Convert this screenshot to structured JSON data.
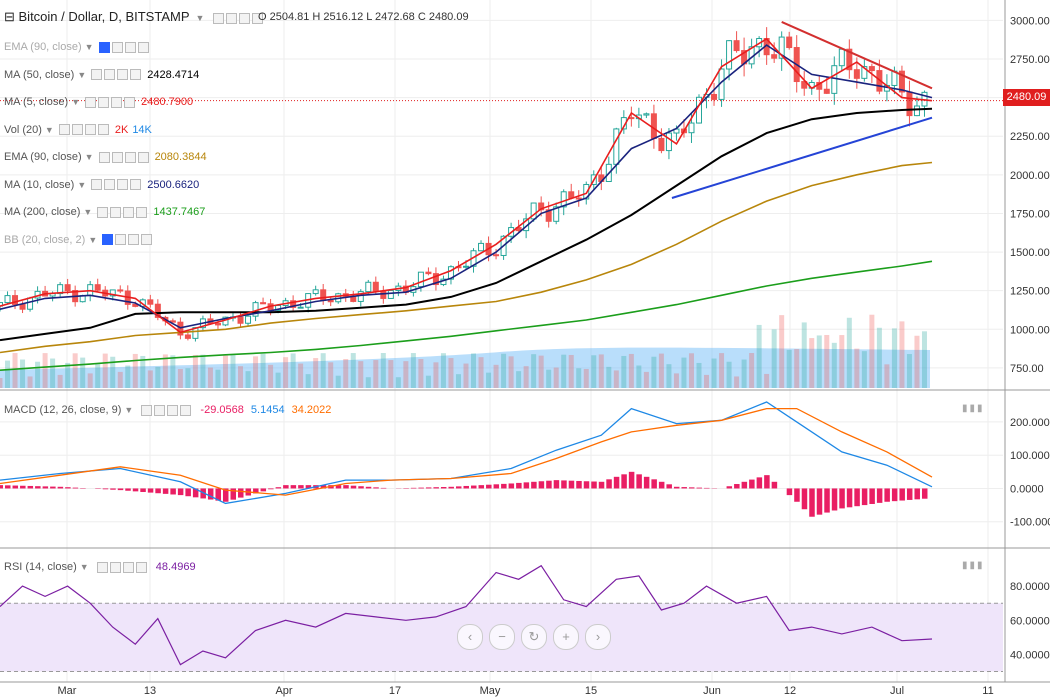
{
  "header": {
    "symbol": "Bitcoin / Dollar, D, BITSTAMP",
    "ohlc": "O 2504.81  H 2516.12  L 2472.68  C 2480.09",
    "last_price_tag": "2480.09"
  },
  "legend": [
    {
      "key": "ema90a",
      "label": "EMA (90, close)",
      "value": "",
      "color": "#9c27b0",
      "muted": true
    },
    {
      "key": "ma50",
      "label": "MA (50, close)",
      "value": "2428.4714",
      "color": "#000000",
      "muted": false
    },
    {
      "key": "ma5",
      "label": "MA (5, close)",
      "value": "2480.7900",
      "color": "#e91e1e",
      "muted": false
    },
    {
      "key": "vol",
      "label": "Vol (20)",
      "value": "2K",
      "value2": "14K",
      "color": "#e91e1e",
      "color2": "#1e88e5",
      "muted": false
    },
    {
      "key": "ema90",
      "label": "EMA (90, close)",
      "value": "2080.3844",
      "color": "#b8860b",
      "muted": false
    },
    {
      "key": "ma10",
      "label": "MA (10, close)",
      "value": "2500.6620",
      "color": "#1a237e",
      "muted": false
    },
    {
      "key": "ma200",
      "label": "MA (200, close)",
      "value": "1437.7467",
      "color": "#1b9e1b",
      "muted": false
    },
    {
      "key": "bb",
      "label": "BB (20, close, 2)",
      "value": "",
      "color": "#2962ff",
      "muted": true
    }
  ],
  "macd_legend": {
    "label": "MACD (12, 26, close, 9)",
    "hist": "-29.0568",
    "macd": "5.1454",
    "signal": "34.2022",
    "hist_color": "#e91e63",
    "macd_color": "#1e88e5",
    "signal_color": "#ff6d00"
  },
  "rsi_legend": {
    "label": "RSI (14, close)",
    "value": "48.4969",
    "color": "#7b1fa2"
  },
  "colors": {
    "up": "#26a69a",
    "down": "#ef5350",
    "grid": "#eeeeee",
    "rsi_band": "#efe5fa"
  },
  "nav_icons": [
    "chevron-left-icon",
    "minus-icon",
    "reset-icon",
    "plus-icon",
    "chevron-right-icon"
  ],
  "chart_data": {
    "type": "line",
    "title": "Bitcoin / Dollar, D, BITSTAMP",
    "price_axis": {
      "ylim": [
        620,
        3080
      ],
      "ticks": [
        750,
        1000,
        1250,
        1500,
        1750,
        2000,
        2250,
        2500,
        2750,
        3000
      ],
      "tick_labels": [
        "750.00",
        "1000.00",
        "1250.00",
        "1500.00",
        "1750.00",
        "2000.00",
        "2250.00",
        "2500.00",
        "2750.00",
        "3000.00"
      ]
    },
    "x_tick_labels": [
      "Mar",
      "13",
      "Apr",
      "17",
      "May",
      "15",
      "Jun",
      "12",
      "Jul",
      "11"
    ],
    "series": [
      {
        "name": "MA (200, close)",
        "values": [
          [
            0,
            735
          ],
          [
            30,
            755
          ],
          [
            60,
            775
          ],
          [
            90,
            798
          ],
          [
            120,
            818
          ],
          [
            150,
            835
          ],
          [
            180,
            850
          ],
          [
            210,
            870
          ],
          [
            240,
            895
          ],
          [
            270,
            925
          ],
          [
            300,
            955
          ],
          [
            330,
            990
          ],
          [
            360,
            1025
          ],
          [
            390,
            1060
          ],
          [
            420,
            1110
          ],
          [
            450,
            1160
          ],
          [
            480,
            1220
          ],
          [
            510,
            1280
          ],
          [
            540,
            1330
          ],
          [
            570,
            1370
          ],
          [
            600,
            1410
          ],
          [
            620,
            1440
          ]
        ]
      },
      {
        "name": "EMA (90, close)",
        "values": [
          [
            0,
            850
          ],
          [
            30,
            890
          ],
          [
            60,
            920
          ],
          [
            90,
            960
          ],
          [
            120,
            980
          ],
          [
            150,
            1000
          ],
          [
            180,
            1040
          ],
          [
            210,
            1070
          ],
          [
            240,
            1095
          ],
          [
            270,
            1120
          ],
          [
            300,
            1150
          ],
          [
            330,
            1180
          ],
          [
            360,
            1240
          ],
          [
            390,
            1320
          ],
          [
            420,
            1420
          ],
          [
            450,
            1550
          ],
          [
            480,
            1700
          ],
          [
            510,
            1830
          ],
          [
            540,
            1930
          ],
          [
            570,
            2000
          ],
          [
            600,
            2060
          ],
          [
            620,
            2080
          ]
        ]
      },
      {
        "name": "MA (50, close)",
        "values": [
          [
            0,
            930
          ],
          [
            30,
            970
          ],
          [
            60,
            1010
          ],
          [
            90,
            1100
          ],
          [
            120,
            1110
          ],
          [
            150,
            1110
          ],
          [
            180,
            1110
          ],
          [
            210,
            1120
          ],
          [
            240,
            1140
          ],
          [
            270,
            1160
          ],
          [
            300,
            1210
          ],
          [
            330,
            1300
          ],
          [
            360,
            1440
          ],
          [
            390,
            1580
          ],
          [
            420,
            1740
          ],
          [
            450,
            1930
          ],
          [
            480,
            2120
          ],
          [
            510,
            2270
          ],
          [
            540,
            2360
          ],
          [
            570,
            2400
          ],
          [
            600,
            2420
          ],
          [
            620,
            2428
          ]
        ]
      },
      {
        "name": "MA (10, close)",
        "values": [
          [
            0,
            1130
          ],
          [
            30,
            1200
          ],
          [
            60,
            1220
          ],
          [
            90,
            1170
          ],
          [
            120,
            1010
          ],
          [
            150,
            1070
          ],
          [
            180,
            1120
          ],
          [
            210,
            1180
          ],
          [
            240,
            1220
          ],
          [
            270,
            1240
          ],
          [
            300,
            1330
          ],
          [
            330,
            1500
          ],
          [
            360,
            1750
          ],
          [
            390,
            1850
          ],
          [
            420,
            2170
          ],
          [
            450,
            2300
          ],
          [
            480,
            2600
          ],
          [
            510,
            2840
          ],
          [
            540,
            2650
          ],
          [
            570,
            2600
          ],
          [
            600,
            2550
          ],
          [
            620,
            2500
          ]
        ]
      },
      {
        "name": "MA (5, close)",
        "values": [
          [
            0,
            1150
          ],
          [
            30,
            1230
          ],
          [
            60,
            1250
          ],
          [
            90,
            1200
          ],
          [
            120,
            980
          ],
          [
            150,
            1060
          ],
          [
            180,
            1150
          ],
          [
            210,
            1200
          ],
          [
            240,
            1230
          ],
          [
            270,
            1270
          ],
          [
            300,
            1380
          ],
          [
            330,
            1550
          ],
          [
            360,
            1780
          ],
          [
            390,
            1880
          ],
          [
            420,
            2400
          ],
          [
            450,
            2200
          ],
          [
            480,
            2700
          ],
          [
            510,
            2880
          ],
          [
            540,
            2560
          ],
          [
            570,
            2730
          ],
          [
            600,
            2500
          ],
          [
            620,
            2480
          ]
        ]
      }
    ],
    "trendlines": [
      {
        "color": "#d32f2f",
        "from": [
          520,
          2990
        ],
        "to": [
          620,
          2560
        ]
      },
      {
        "color": "#2544d6",
        "from": [
          447,
          1850
        ],
        "to": [
          620,
          2370
        ]
      }
    ],
    "macd": {
      "ylim": [
        -170,
        290
      ],
      "ticks": [
        -100,
        0,
        100,
        200
      ],
      "tick_labels": [
        "-100.0000",
        "0.0000",
        "100.0000",
        "200.0000"
      ],
      "macd": [
        [
          0,
          25
        ],
        [
          40,
          45
        ],
        [
          80,
          60
        ],
        [
          120,
          20
        ],
        [
          150,
          -45
        ],
        [
          190,
          -15
        ],
        [
          230,
          25
        ],
        [
          260,
          25
        ],
        [
          300,
          30
        ],
        [
          340,
          60
        ],
        [
          370,
          115
        ],
        [
          400,
          160
        ],
        [
          420,
          240
        ],
        [
          450,
          195
        ],
        [
          480,
          205
        ],
        [
          510,
          260
        ],
        [
          530,
          200
        ],
        [
          560,
          110
        ],
        [
          590,
          70
        ],
        [
          620,
          5
        ]
      ],
      "signal": [
        [
          0,
          15
        ],
        [
          40,
          40
        ],
        [
          80,
          65
        ],
        [
          120,
          40
        ],
        [
          150,
          -5
        ],
        [
          190,
          -20
        ],
        [
          230,
          15
        ],
        [
          260,
          25
        ],
        [
          300,
          30
        ],
        [
          340,
          45
        ],
        [
          370,
          90
        ],
        [
          400,
          140
        ],
        [
          420,
          170
        ],
        [
          450,
          190
        ],
        [
          480,
          205
        ],
        [
          510,
          240
        ],
        [
          530,
          240
        ],
        [
          560,
          170
        ],
        [
          590,
          110
        ],
        [
          620,
          34
        ]
      ],
      "hist": [
        [
          0,
          10
        ],
        [
          40,
          5
        ],
        [
          80,
          -5
        ],
        [
          120,
          -20
        ],
        [
          150,
          -40
        ],
        [
          190,
          10
        ],
        [
          230,
          10
        ],
        [
          260,
          0
        ],
        [
          300,
          5
        ],
        [
          340,
          15
        ],
        [
          370,
          25
        ],
        [
          400,
          20
        ],
        [
          420,
          50
        ],
        [
          450,
          5
        ],
        [
          480,
          0
        ],
        [
          510,
          40
        ],
        [
          530,
          -40
        ],
        [
          540,
          -85
        ],
        [
          560,
          -60
        ],
        [
          590,
          -40
        ],
        [
          620,
          -29
        ]
      ]
    },
    "rsi": {
      "ylim": [
        25,
        100
      ],
      "ticks": [
        40,
        60,
        80
      ],
      "tick_labels": [
        "40.0000",
        "60.0000",
        "80.0000"
      ],
      "band": [
        30,
        70
      ],
      "values": [
        [
          0,
          68
        ],
        [
          15,
          80
        ],
        [
          30,
          74
        ],
        [
          45,
          80
        ],
        [
          60,
          70
        ],
        [
          75,
          56
        ],
        [
          90,
          46
        ],
        [
          105,
          61
        ],
        [
          120,
          34
        ],
        [
          135,
          42
        ],
        [
          150,
          38
        ],
        [
          170,
          54
        ],
        [
          190,
          60
        ],
        [
          210,
          56
        ],
        [
          230,
          64
        ],
        [
          250,
          62
        ],
        [
          270,
          60
        ],
        [
          290,
          62
        ],
        [
          310,
          68
        ],
        [
          330,
          88
        ],
        [
          345,
          84
        ],
        [
          360,
          92
        ],
        [
          375,
          72
        ],
        [
          390,
          68
        ],
        [
          410,
          84
        ],
        [
          425,
          86
        ],
        [
          440,
          66
        ],
        [
          455,
          70
        ],
        [
          470,
          80
        ],
        [
          490,
          70
        ],
        [
          510,
          74
        ],
        [
          525,
          54
        ],
        [
          540,
          56
        ],
        [
          560,
          52
        ],
        [
          580,
          56
        ],
        [
          600,
          48
        ],
        [
          620,
          49
        ]
      ]
    }
  }
}
